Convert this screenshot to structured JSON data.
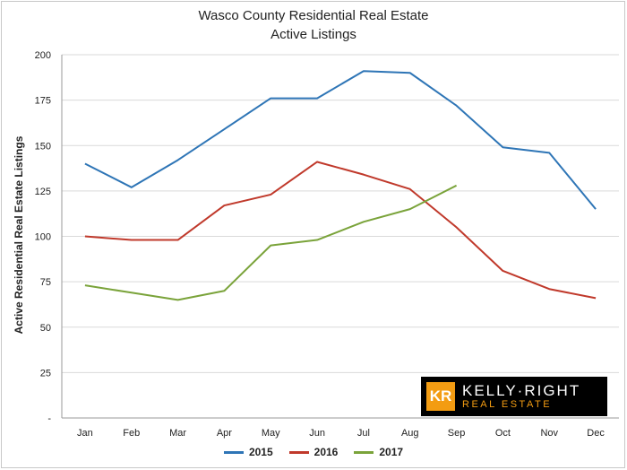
{
  "chart_data": {
    "type": "line",
    "title": "Wasco County Residential Real Estate",
    "subtitle": "Active Listings",
    "xlabel": "",
    "ylabel": "Active Residential Real Estate Listings",
    "categories": [
      "Jan",
      "Feb",
      "Mar",
      "Apr",
      "May",
      "Jun",
      "Jul",
      "Aug",
      "Sep",
      "Oct",
      "Nov",
      "Dec"
    ],
    "ylim": [
      0,
      200
    ],
    "yticks": [
      0,
      25,
      50,
      75,
      100,
      125,
      150,
      175,
      200
    ],
    "ytick_labels": [
      "-",
      "25",
      "50",
      "75",
      "100",
      "125",
      "150",
      "175",
      "200"
    ],
    "grid": true,
    "legend_position": "bottom",
    "series": [
      {
        "name": "2015",
        "color": "#2e75b6",
        "values": [
          140,
          127,
          142,
          159,
          176,
          176,
          191,
          190,
          172,
          149,
          146,
          115
        ]
      },
      {
        "name": "2016",
        "color": "#c0392b",
        "values": [
          100,
          98,
          98,
          117,
          123,
          141,
          134,
          126,
          105,
          81,
          71,
          66
        ]
      },
      {
        "name": "2017",
        "color": "#7aa33a",
        "values": [
          73,
          69,
          65,
          70,
          95,
          98,
          108,
          115,
          128,
          null,
          null,
          null
        ]
      }
    ]
  },
  "logo": {
    "mark": "KR",
    "name": "KELLY·RIGHT",
    "tagline": "REAL ESTATE"
  }
}
